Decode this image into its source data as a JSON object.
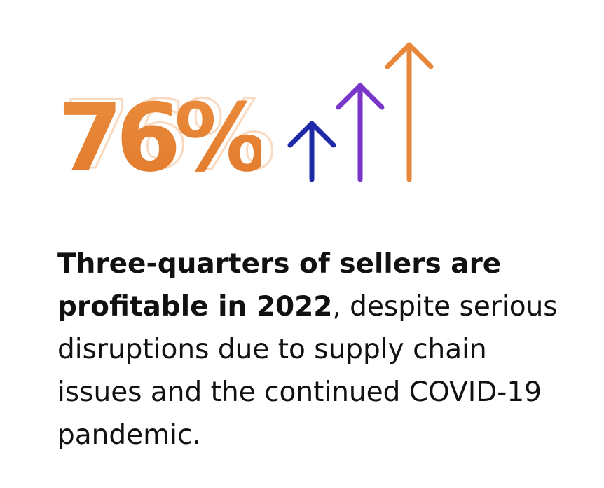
{
  "stat": {
    "value": "76%"
  },
  "colors": {
    "orange": "#e8873a",
    "purple": "#7a35c9",
    "navy": "#1f2aa8",
    "shadow": "#f9d9bf",
    "text": "#111111"
  },
  "icons": [
    "arrow-up-navy-icon",
    "arrow-up-purple-icon",
    "arrow-up-orange-icon"
  ],
  "caption": {
    "bold": "Three-quarters of sellers are profitable in 2022",
    "rest": ", despite serious disruptions due to supply chain issues and the continued COVID-19 pandemic."
  }
}
